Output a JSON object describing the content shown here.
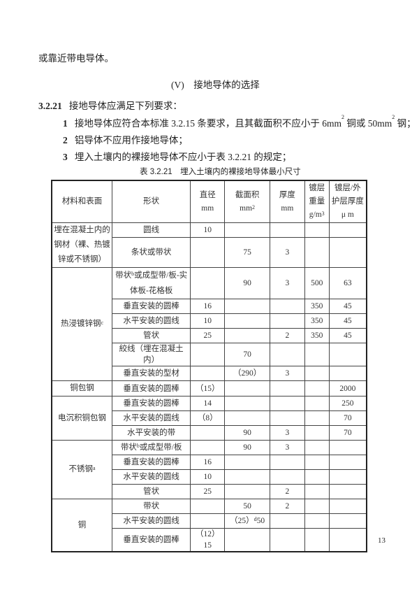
{
  "intro_tail": "或靠近带电导体。",
  "section_heading": "(V)　接地导体的选择",
  "clause": {
    "number": "3.2.21",
    "text": "接地导体应满足下列要求："
  },
  "items": [
    {
      "num": "1",
      "pre": "接地导体应符合本标准 3.2.15 条要求，且其截面积不应小于 6mm",
      "sup1": "2",
      "mid": " 铜或 50mm",
      "sup2": "2",
      "post": " 钢；"
    },
    {
      "num": "2",
      "pre": "铝导体不应用作接地导体；"
    },
    {
      "num": "3",
      "pre": "埋入土壤内的裸接地导体不应小于表 3.2.21 的规定；"
    }
  ],
  "table_caption": "表 3.2.21　埋入土壤内的裸接地导体最小尺寸",
  "table": {
    "headers": [
      {
        "lines": [
          "材料和表面"
        ]
      },
      {
        "lines": [
          "形状"
        ]
      },
      {
        "lines": [
          "直径",
          "mm"
        ]
      },
      {
        "lines": [
          "截面积",
          "mm"
        ],
        "sup": "2"
      },
      {
        "lines": [
          "厚度",
          "mm"
        ]
      },
      {
        "lines": [
          "镀层",
          "重量",
          "g/m"
        ],
        "sup": "3"
      },
      {
        "lines": [
          "镀层/外",
          "护层厚度",
          "μ m"
        ]
      }
    ],
    "groups": [
      {
        "material": {
          "pre": "埋在混凝土内的钢材（裸、热镀锌或不锈钢）"
        },
        "rows": [
          [
            {
              "pre": "圆线"
            },
            "10",
            "",
            "",
            "",
            ""
          ],
          [
            {
              "pre": "条状或带状"
            },
            "",
            "75",
            "3",
            "",
            ""
          ]
        ]
      },
      {
        "material": {
          "pre": "热浸镀锌钢",
          "sup": "c"
        },
        "rows": [
          [
            {
              "pre": "带状",
              "sup": "b",
              "post": "或成型带/板-实体板-花格板"
            },
            "",
            "90",
            "3",
            "500",
            "63"
          ],
          [
            {
              "pre": "垂直安装的圆棒"
            },
            "16",
            "",
            "",
            "350",
            "45"
          ],
          [
            {
              "pre": "水平安装的圆线"
            },
            "10",
            "",
            "",
            "350",
            "45"
          ],
          [
            {
              "pre": "管状"
            },
            "25",
            "",
            "2",
            "350",
            "45"
          ],
          [
            {
              "pre": "絞线（埋在混凝土内）"
            },
            "",
            "70",
            "",
            "",
            ""
          ],
          [
            {
              "pre": "垂直安装的型材"
            },
            "",
            "（290）",
            "3",
            "",
            ""
          ]
        ]
      },
      {
        "material": {
          "pre": "铜包钢"
        },
        "rows": [
          [
            {
              "pre": "垂直安装的圆棒"
            },
            "（15）",
            "",
            "",
            "",
            "2000"
          ]
        ]
      },
      {
        "material": {
          "pre": "电沉积铜包钢"
        },
        "rows": [
          [
            {
              "pre": "垂直安装的圆棒"
            },
            "14",
            "",
            "",
            "",
            "250"
          ],
          [
            {
              "pre": "水平安装的圆线"
            },
            "（8）",
            "",
            "",
            "",
            "70"
          ],
          [
            {
              "pre": "水平安装的带"
            },
            "",
            "90",
            "3",
            "",
            "70"
          ]
        ]
      },
      {
        "material": {
          "pre": "不锈钢",
          "sup": "a"
        },
        "rows": [
          [
            {
              "pre": "带状",
              "sup": "b",
              "post": "或成型带/板"
            },
            "",
            "90",
            "3",
            "",
            ""
          ],
          [
            {
              "pre": "垂直安装的圆棒"
            },
            "16",
            "",
            "",
            "",
            ""
          ],
          [
            {
              "pre": "水平安装的圆线"
            },
            "10",
            "",
            "",
            "",
            ""
          ],
          [
            {
              "pre": "管状"
            },
            "25",
            "",
            "2",
            "",
            ""
          ]
        ]
      },
      {
        "material": {
          "pre": "铜"
        },
        "rows": [
          [
            {
              "pre": "带状"
            },
            "",
            "50",
            "2",
            "",
            ""
          ],
          [
            {
              "pre": "水平安装的圆线"
            },
            "",
            {
              "pre": "（25）",
              "sup": "d",
              "post": "50"
            },
            "",
            "",
            ""
          ],
          [
            {
              "pre": "垂直安装的圆棒"
            },
            "（12）15",
            "",
            "",
            "",
            ""
          ]
        ]
      }
    ]
  },
  "page_number": "13"
}
